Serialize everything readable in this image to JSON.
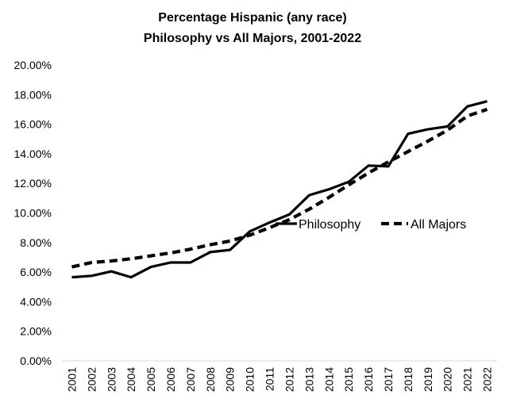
{
  "chart_data": {
    "type": "line",
    "title": [
      "Percentage Hispanic  (any race)",
      "Philosophy  vs All Majors,  2001-2022"
    ],
    "xlabel": "",
    "ylabel": "",
    "ylim": [
      0,
      0.2
    ],
    "ytick_step": 0.02,
    "ytick_labels": [
      "0.00%",
      "2.00%",
      "4.00%",
      "6.00%",
      "8.00%",
      "10.00%",
      "12.00%",
      "14.00%",
      "16.00%",
      "18.00%",
      "20.00%"
    ],
    "categories": [
      "2001",
      "2002",
      "2003",
      "2004",
      "2005",
      "2006",
      "2007",
      "2008",
      "2009",
      "2010",
      "2011",
      "2012",
      "2013",
      "2014",
      "2015",
      "2016",
      "2017",
      "2018",
      "2019",
      "2020",
      "2021",
      "2022"
    ],
    "grid": false,
    "legend_position": "right, middle of plot area",
    "series": [
      {
        "name": "Philosophy",
        "style": "solid",
        "color": "#000000",
        "values": [
          0.0565,
          0.0575,
          0.0605,
          0.0565,
          0.0635,
          0.0665,
          0.0665,
          0.0735,
          0.075,
          0.0875,
          0.0935,
          0.099,
          0.112,
          0.116,
          0.121,
          0.132,
          0.1315,
          0.1535,
          0.1565,
          0.1585,
          0.172,
          0.1755
        ]
      },
      {
        "name": "All Majors",
        "style": "dashed",
        "color": "#000000",
        "values": [
          0.0635,
          0.0665,
          0.0675,
          0.069,
          0.071,
          0.073,
          0.0755,
          0.0785,
          0.081,
          0.085,
          0.09,
          0.0955,
          0.1025,
          0.1105,
          0.119,
          0.127,
          0.1345,
          0.1415,
          0.1485,
          0.156,
          0.1655,
          0.17
        ]
      }
    ]
  }
}
